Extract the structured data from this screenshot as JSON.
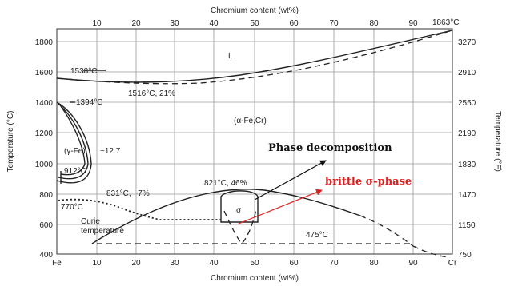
{
  "diagram": {
    "title_top": "Chromium content (wt%)",
    "title_bottom": "Chromium content (wt%)",
    "left_axis_title": "Temperature (°C)",
    "right_axis_title": "Temperature (°F)",
    "top_ticks": [
      "10",
      "20",
      "30",
      "40",
      "50",
      "60",
      "70",
      "80",
      "90"
    ],
    "bottom_ticks": [
      "Fe",
      "10",
      "20",
      "30",
      "40",
      "50",
      "60",
      "70",
      "80",
      "90",
      "Cr"
    ],
    "left_ticks": [
      "1800",
      "1600",
      "1400",
      "1200",
      "1000",
      "800",
      "600",
      "400"
    ],
    "right_ticks": [
      "3270",
      "2910",
      "2550",
      "2190",
      "1830",
      "1470",
      "1150",
      "750"
    ],
    "labels": {
      "cr_melting": "1863°C",
      "liquid": "L",
      "fe_melting": "1538°C",
      "min_point": "1516°C, 21%",
      "gamma_transition": "1394°C",
      "alpha_region": "(α-Fe,Cr)",
      "gamma_region": "(γ-Fe)",
      "gamma_loop": "~12.7",
      "alpha_gamma": "912°C",
      "sigma_max": "821°C, 46%",
      "sigma_eutectoid": "831°C, ~7%",
      "curie_temp": "770°C",
      "curie_label_1": "Curie",
      "curie_label_2": "temperature",
      "sigma": "σ",
      "miscibility": "475°C"
    },
    "annotations": {
      "phase_decomposition": "Phase decomposition",
      "brittle_sigma": "brittle σ-phase"
    },
    "colors": {
      "annotation_arrow_black": "#111111",
      "annotation_arrow_red": "#e02020",
      "grid": "#9a9a9a"
    }
  }
}
